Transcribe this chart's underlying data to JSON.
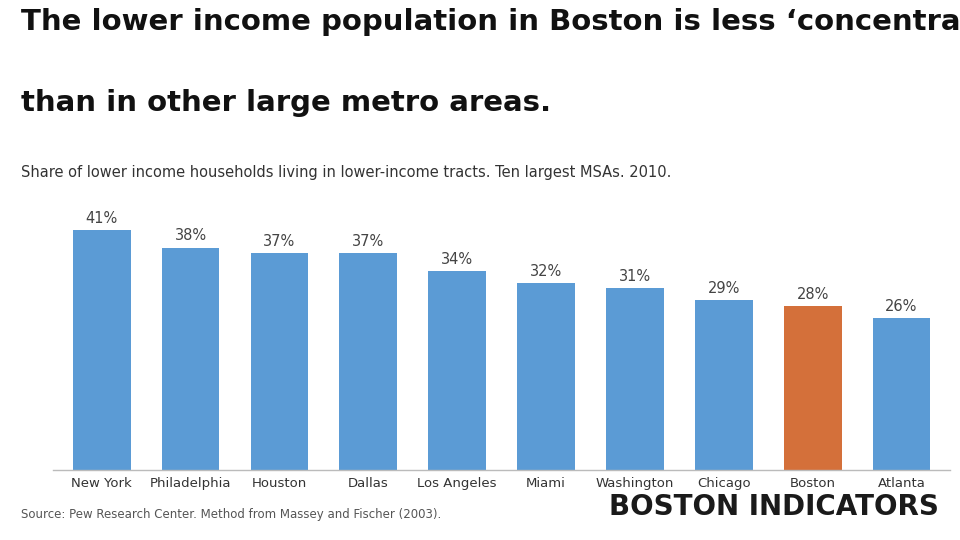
{
  "categories": [
    "New York",
    "Philadelphia",
    "Houston",
    "Dallas",
    "Los Angeles",
    "Miami",
    "Washington",
    "Chicago",
    "Boston",
    "Atlanta"
  ],
  "values": [
    41,
    38,
    37,
    37,
    34,
    32,
    31,
    29,
    28,
    26
  ],
  "bar_colors": [
    "#5B9BD5",
    "#5B9BD5",
    "#5B9BD5",
    "#5B9BD5",
    "#5B9BD5",
    "#5B9BD5",
    "#5B9BD5",
    "#5B9BD5",
    "#D4703A",
    "#5B9BD5"
  ],
  "title_line1": "The lower income population in Boston is less ‘concentrated’",
  "title_line2": "than in other large metro areas.",
  "subtitle": "Share of lower income households living in lower-income tracts. Ten largest MSAs. 2010.",
  "source": "Source: Pew Research Center. Method from Massey and Fischer (2003).",
  "watermark": "BOSTON INDICATORS",
  "title_fontsize": 21,
  "subtitle_fontsize": 10.5,
  "label_fontsize": 10.5,
  "tick_fontsize": 9.5,
  "source_fontsize": 8.5,
  "watermark_fontsize": 20,
  "background_color": "#FFFFFF",
  "bar_label_color": "#444444",
  "axis_line_color": "#BBBBBB",
  "ylim": [
    0,
    48
  ]
}
